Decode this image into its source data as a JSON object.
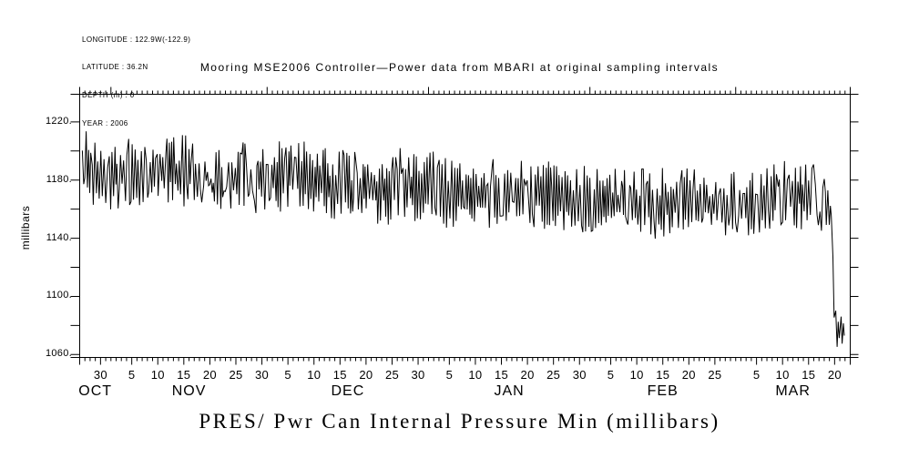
{
  "page": {
    "background": "#ffffff",
    "foreground": "#000000"
  },
  "header": {
    "lines": [
      "LONGITUDE : 122.9W(-122.9)",
      "LATITUDE : 36.2N",
      "DEPTH (m) : 0",
      "YEAR : 2006"
    ]
  },
  "chart_data": {
    "type": "line",
    "title": "Mooring MSE2006 Controller—Power data from MBARI at original sampling intervals",
    "footer_title": "PRES/ Pwr Can Internal Pressure Min (millibars)",
    "ylabel": "millibars",
    "ylim": [
      1058,
      1239
    ],
    "ytick_step": 20,
    "yticks_labeled": [
      1060,
      1100,
      1140,
      1180,
      1220
    ],
    "ytick_label_suffix": ".",
    "grid": false,
    "line_color": "#000000",
    "x_axis_start": "OCT 26",
    "x_axis_end": "MAR 23",
    "x_day_label_interval": 5,
    "x_months": [
      {
        "name": "OCT",
        "first_day": 26,
        "last_day": 31
      },
      {
        "name": "NOV",
        "first_day": 1,
        "last_day": 30
      },
      {
        "name": "DEC",
        "first_day": 1,
        "last_day": 31
      },
      {
        "name": "JAN",
        "first_day": 1,
        "last_day": 31
      },
      {
        "name": "FEB",
        "first_day": 1,
        "last_day": 28
      },
      {
        "name": "MAR",
        "first_day": 1,
        "last_day": 23
      }
    ],
    "series": [
      {
        "name": "Pwr Can Internal Pressure Min",
        "units": "millibars",
        "style": "dense noisy oscillating line, ~1 cycle per day",
        "envelope_day_lo_hi": [
          [
            0.5,
            1163,
            1221
          ],
          [
            2.0,
            1158,
            1216
          ],
          [
            4.0,
            1156,
            1206
          ],
          [
            8.0,
            1158,
            1212
          ],
          [
            13.0,
            1160,
            1215
          ],
          [
            18.0,
            1158,
            1215
          ],
          [
            23.3,
            1158,
            1213
          ],
          [
            24.2,
            1178,
            1190
          ],
          [
            25.6,
            1170,
            1180
          ],
          [
            26.2,
            1156,
            1205
          ],
          [
            30.0,
            1158,
            1210
          ],
          [
            36.0,
            1153,
            1208
          ],
          [
            40.0,
            1156,
            1217
          ],
          [
            44.0,
            1152,
            1210
          ],
          [
            50.0,
            1150,
            1203
          ],
          [
            56.0,
            1148,
            1200
          ],
          [
            62.0,
            1146,
            1206
          ],
          [
            68.0,
            1145,
            1202
          ],
          [
            75.0,
            1142,
            1196
          ],
          [
            82.0,
            1147,
            1198
          ],
          [
            89.0,
            1144,
            1200
          ],
          [
            96.0,
            1141,
            1192
          ],
          [
            103.0,
            1142,
            1190
          ],
          [
            110.0,
            1137,
            1192
          ],
          [
            117.0,
            1141,
            1190
          ],
          [
            124.0,
            1139,
            1188
          ],
          [
            131.0,
            1140,
            1191
          ],
          [
            138.0,
            1144,
            1198
          ],
          [
            143.0,
            1143,
            1194
          ],
          [
            144.4,
            1150,
            1166
          ],
          [
            144.9,
            1085,
            1105
          ],
          [
            145.3,
            1064,
            1088
          ],
          [
            146.5,
            1066,
            1094
          ],
          [
            147.1,
            1070,
            1080
          ]
        ],
        "notes": "Day 0 = Oct 26. Pressure oscillates rapidly between lo/hi envelope; quiet thin connector segment near Nov 19-21 (data gap); abrupt drop from ~1160 to ~1065 millibars around Mar 20, bouncing 1065-1095 until the record ends ~Mar 21."
      }
    ]
  }
}
